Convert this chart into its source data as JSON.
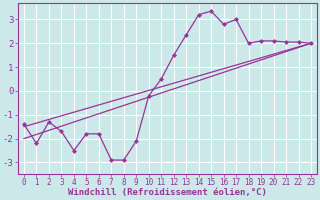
{
  "xlabel": "Windchill (Refroidissement éolien,°C)",
  "bg_color": "#cce8e8",
  "line_color": "#993399",
  "grid_color": "#ffffff",
  "xlim": [
    -0.5,
    23.5
  ],
  "ylim": [
    -3.5,
    3.7
  ],
  "yticks": [
    -3,
    -2,
    -1,
    0,
    1,
    2,
    3
  ],
  "xticks": [
    0,
    1,
    2,
    3,
    4,
    5,
    6,
    7,
    8,
    9,
    10,
    11,
    12,
    13,
    14,
    15,
    16,
    17,
    18,
    19,
    20,
    21,
    22,
    23
  ],
  "data_x": [
    0,
    1,
    2,
    3,
    4,
    5,
    6,
    7,
    8,
    9,
    10,
    11,
    12,
    13,
    14,
    15,
    16,
    17,
    18,
    19,
    20,
    21,
    22,
    23
  ],
  "data_y": [
    -1.4,
    -2.2,
    -1.3,
    -1.7,
    -2.5,
    -1.8,
    -1.8,
    -2.9,
    -2.9,
    -2.1,
    -0.2,
    0.5,
    1.5,
    2.35,
    3.2,
    3.35,
    2.8,
    3.0,
    2.0,
    2.1,
    2.1,
    2.05,
    2.05,
    2.0
  ],
  "line1_x": [
    0,
    23
  ],
  "line1_y": [
    -1.5,
    2.0
  ],
  "line2_x": [
    0,
    23
  ],
  "line2_y": [
    -2.0,
    2.0
  ],
  "marker_size": 2.5,
  "linewidth": 0.9,
  "xlabel_fontsize": 6.5,
  "tick_fontsize": 5.5,
  "ytick_fontsize": 6.5
}
